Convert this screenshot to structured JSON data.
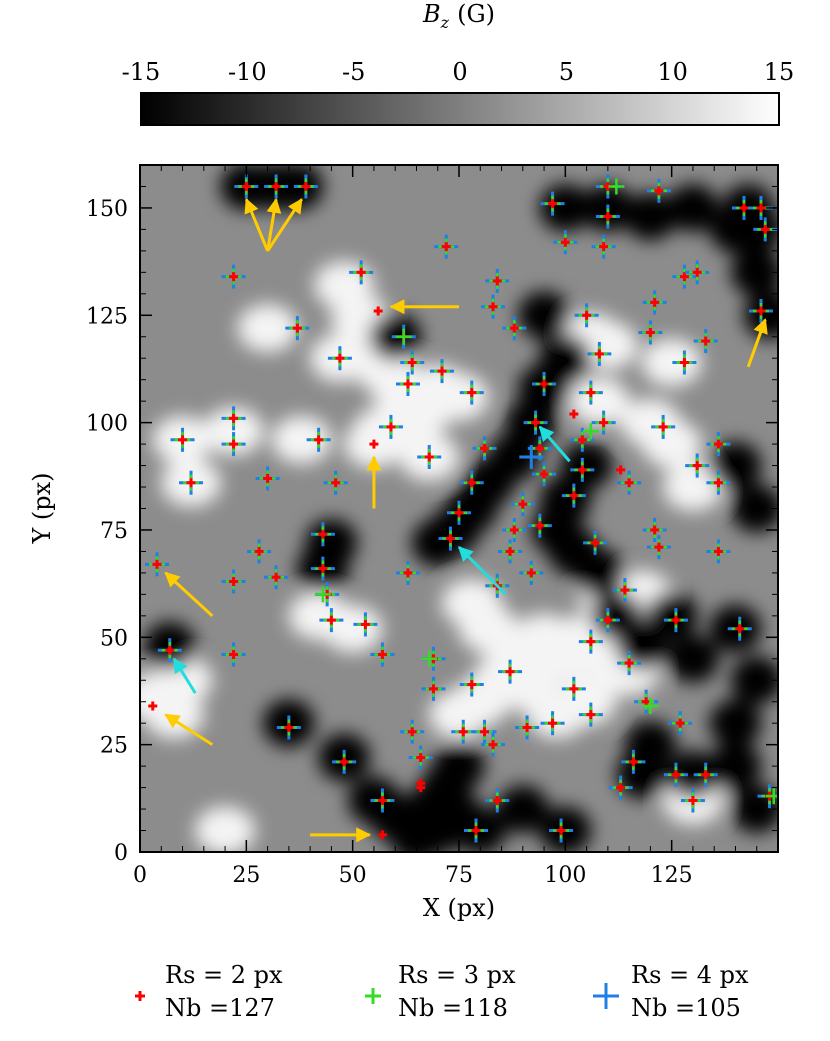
{
  "colorbar": {
    "label_main": "B",
    "label_sub": "z",
    "label_unit": "(G)",
    "range": [
      -15,
      15
    ],
    "ticks": [
      "-15",
      "-10",
      "-5",
      "0",
      "5",
      "10",
      "15"
    ]
  },
  "chart_data": {
    "type": "scatter",
    "xlabel": "X (px)",
    "ylabel": "Y (px)",
    "xlim": [
      0,
      150
    ],
    "ylim": [
      0,
      160
    ],
    "xticks": [
      "0",
      "25",
      "50",
      "75",
      "100",
      "125"
    ],
    "yticks": [
      "0",
      "25",
      "50",
      "75",
      "100",
      "125",
      "150"
    ],
    "colors": {
      "rs2": "#ff0000",
      "rs3": "#33dd22",
      "rs4": "#1f7fe6",
      "yellow_arrow": "#ffcc00",
      "cyan_arrow": "#22dddd"
    },
    "legend": [
      {
        "line1": "Rs = 2 px",
        "line2": "Nb =127",
        "color": "#ff0000",
        "size": "small"
      },
      {
        "line1": "Rs = 3 px",
        "line2": "Nb =118",
        "color": "#33dd22",
        "size": "medium"
      },
      {
        "line1": "Rs = 4 px",
        "line2": "Nb =105",
        "color": "#1f7fe6",
        "size": "large"
      }
    ],
    "background_blobs": {
      "positive": [
        [
          48,
          132
        ],
        [
          52,
          124
        ],
        [
          55,
          118
        ],
        [
          58,
          112
        ],
        [
          62,
          106
        ],
        [
          66,
          102
        ],
        [
          70,
          108
        ],
        [
          75,
          106
        ],
        [
          58,
          98
        ],
        [
          55,
          95
        ],
        [
          30,
          122
        ],
        [
          47,
          115
        ],
        [
          10,
          96
        ],
        [
          12,
          86
        ],
        [
          22,
          98
        ],
        [
          38,
          96
        ],
        [
          57,
          98
        ],
        [
          68,
          92
        ],
        [
          78,
          58
        ],
        [
          82,
          52
        ],
        [
          88,
          46
        ],
        [
          85,
          40
        ],
        [
          80,
          35
        ],
        [
          75,
          32
        ],
        [
          95,
          50
        ],
        [
          100,
          45
        ],
        [
          105,
          50
        ],
        [
          110,
          45
        ],
        [
          115,
          42
        ],
        [
          92,
          38
        ],
        [
          98,
          32
        ],
        [
          105,
          35
        ],
        [
          108,
          105
        ],
        [
          110,
          118
        ],
        [
          106,
          120
        ],
        [
          120,
          100
        ],
        [
          125,
          95
        ],
        [
          130,
          85
        ],
        [
          3,
          36
        ],
        [
          8,
          32
        ],
        [
          42,
          55
        ],
        [
          50,
          52
        ],
        [
          110,
          60
        ],
        [
          118,
          60
        ],
        [
          125,
          114
        ],
        [
          130,
          12
        ],
        [
          20,
          5
        ],
        [
          10,
          40
        ]
      ],
      "negative": [
        [
          100,
          150
        ],
        [
          110,
          150
        ],
        [
          120,
          148
        ],
        [
          130,
          150
        ],
        [
          140,
          145
        ],
        [
          95,
          125
        ],
        [
          100,
          115
        ],
        [
          95,
          108
        ],
        [
          92,
          100
        ],
        [
          88,
          92
        ],
        [
          82,
          86
        ],
        [
          78,
          80
        ],
        [
          74,
          75
        ],
        [
          70,
          72
        ],
        [
          100,
          82
        ],
        [
          105,
          90
        ],
        [
          98,
          75
        ],
        [
          102,
          70
        ],
        [
          108,
          65
        ],
        [
          112,
          55
        ],
        [
          118,
          48
        ],
        [
          125,
          55
        ],
        [
          130,
          45
        ],
        [
          140,
          52
        ],
        [
          145,
          40
        ],
        [
          140,
          30
        ],
        [
          140,
          20
        ],
        [
          145,
          10
        ],
        [
          75,
          20
        ],
        [
          72,
          15
        ],
        [
          68,
          10
        ],
        [
          70,
          5
        ],
        [
          65,
          3
        ],
        [
          75,
          8
        ],
        [
          55,
          12
        ],
        [
          60,
          8
        ],
        [
          80,
          5
        ],
        [
          90,
          10
        ],
        [
          100,
          5
        ],
        [
          120,
          25
        ],
        [
          130,
          18
        ],
        [
          118,
          18
        ],
        [
          148,
          125
        ],
        [
          145,
          135
        ],
        [
          140,
          90
        ],
        [
          145,
          80
        ],
        [
          35,
          30
        ],
        [
          48,
          22
        ],
        [
          7,
          48
        ],
        [
          45,
          72
        ],
        [
          43,
          66
        ],
        [
          25,
          155
        ],
        [
          32,
          155
        ],
        [
          37,
          155
        ],
        [
          143,
          150
        ],
        [
          145,
          145
        ],
        [
          60,
          120
        ]
      ]
    },
    "markers_all": [
      [
        25,
        155
      ],
      [
        32,
        155
      ],
      [
        39,
        155
      ],
      [
        110,
        155
      ],
      [
        122,
        154
      ],
      [
        97,
        151
      ],
      [
        142,
        150
      ],
      [
        146,
        150
      ],
      [
        110,
        148
      ],
      [
        147,
        145
      ],
      [
        72,
        141
      ],
      [
        100,
        142
      ],
      [
        109,
        141
      ],
      [
        22,
        134
      ],
      [
        52,
        135
      ],
      [
        128,
        134
      ],
      [
        131,
        135
      ],
      [
        84,
        133
      ],
      [
        83,
        127
      ],
      [
        121,
        128
      ],
      [
        146,
        126
      ],
      [
        105,
        125
      ],
      [
        88,
        122
      ],
      [
        37,
        122
      ],
      [
        62,
        120
      ],
      [
        120,
        121
      ],
      [
        133,
        119
      ],
      [
        47,
        115
      ],
      [
        64,
        114
      ],
      [
        108,
        116
      ],
      [
        71,
        112
      ],
      [
        63,
        109
      ],
      [
        128,
        114
      ],
      [
        95,
        109
      ],
      [
        78,
        107
      ],
      [
        106,
        107
      ],
      [
        109,
        100
      ],
      [
        59,
        99
      ],
      [
        22,
        101
      ],
      [
        93,
        100
      ],
      [
        10,
        96
      ],
      [
        22,
        95
      ],
      [
        42,
        96
      ],
      [
        123,
        99
      ],
      [
        136,
        95
      ],
      [
        68,
        92
      ],
      [
        104,
        96
      ],
      [
        81,
        94
      ],
      [
        94,
        94
      ],
      [
        12,
        86
      ],
      [
        30,
        87
      ],
      [
        46,
        86
      ],
      [
        78,
        86
      ],
      [
        95,
        88
      ],
      [
        104,
        89
      ],
      [
        131,
        90
      ],
      [
        115,
        86
      ],
      [
        136,
        86
      ],
      [
        102,
        83
      ],
      [
        90,
        81
      ],
      [
        75,
        79
      ],
      [
        43,
        74
      ],
      [
        88,
        75
      ],
      [
        94,
        76
      ],
      [
        121,
        75
      ],
      [
        73,
        73
      ],
      [
        107,
        72
      ],
      [
        122,
        71
      ],
      [
        28,
        70
      ],
      [
        87,
        70
      ],
      [
        136,
        70
      ],
      [
        4,
        67
      ],
      [
        43,
        66
      ],
      [
        92,
        65
      ],
      [
        63,
        65
      ],
      [
        32,
        64
      ],
      [
        22,
        63
      ],
      [
        84,
        62
      ],
      [
        114,
        61
      ],
      [
        44,
        60
      ],
      [
        45,
        54
      ],
      [
        53,
        53
      ],
      [
        110,
        54
      ],
      [
        126,
        54
      ],
      [
        141,
        52
      ],
      [
        106,
        49
      ],
      [
        57,
        46
      ],
      [
        22,
        46
      ],
      [
        7,
        47
      ],
      [
        69,
        45
      ],
      [
        115,
        44
      ],
      [
        87,
        42
      ],
      [
        78,
        39
      ],
      [
        69,
        38
      ],
      [
        102,
        38
      ],
      [
        119,
        35
      ],
      [
        106,
        32
      ],
      [
        76,
        28
      ],
      [
        81,
        28
      ],
      [
        97,
        30
      ],
      [
        91,
        29
      ],
      [
        127,
        30
      ],
      [
        35,
        29
      ],
      [
        64,
        28
      ],
      [
        83,
        25
      ],
      [
        66,
        22
      ],
      [
        48,
        21
      ],
      [
        116,
        21
      ],
      [
        126,
        18
      ],
      [
        133,
        18
      ],
      [
        113,
        15
      ],
      [
        57,
        12
      ],
      [
        84,
        12
      ],
      [
        130,
        12
      ],
      [
        148,
        13
      ],
      [
        79,
        5
      ],
      [
        99,
        5
      ]
    ],
    "markers_rs2_only": [
      [
        56,
        126
      ],
      [
        55,
        95
      ],
      [
        3,
        34
      ],
      [
        102,
        102
      ],
      [
        113,
        89
      ],
      [
        66,
        16
      ],
      [
        66,
        15
      ],
      [
        57,
        4
      ]
    ],
    "markers_rs3_only": [
      [
        62,
        120
      ],
      [
        68,
        45
      ],
      [
        106,
        98
      ],
      [
        43,
        60
      ],
      [
        149,
        13
      ],
      [
        112,
        155
      ],
      [
        120,
        34
      ]
    ],
    "markers_rs4_only": [
      [
        92,
        92
      ]
    ],
    "annotations": [
      {
        "color": "yellow",
        "from": [
          30,
          140
        ],
        "to": [
          25,
          152
        ]
      },
      {
        "color": "yellow",
        "from": [
          30,
          140
        ],
        "to": [
          32,
          152
        ]
      },
      {
        "color": "yellow",
        "from": [
          30,
          140
        ],
        "to": [
          38,
          152
        ]
      },
      {
        "color": "yellow",
        "from": [
          75,
          127
        ],
        "to": [
          59,
          127
        ]
      },
      {
        "color": "yellow",
        "from": [
          55,
          80
        ],
        "to": [
          55,
          92
        ]
      },
      {
        "color": "yellow",
        "from": [
          143,
          113
        ],
        "to": [
          147,
          124
        ]
      },
      {
        "color": "yellow",
        "from": [
          17,
          55
        ],
        "to": [
          6,
          65
        ]
      },
      {
        "color": "yellow",
        "from": [
          17,
          25
        ],
        "to": [
          6,
          32
        ]
      },
      {
        "color": "yellow",
        "from": [
          40,
          4
        ],
        "to": [
          54,
          4
        ]
      },
      {
        "color": "cyan",
        "from": [
          101,
          91
        ],
        "to": [
          94,
          99
        ]
      },
      {
        "color": "cyan",
        "from": [
          86,
          60
        ],
        "to": [
          75,
          71
        ]
      },
      {
        "color": "cyan",
        "from": [
          13,
          37
        ],
        "to": [
          8,
          45
        ]
      }
    ]
  }
}
